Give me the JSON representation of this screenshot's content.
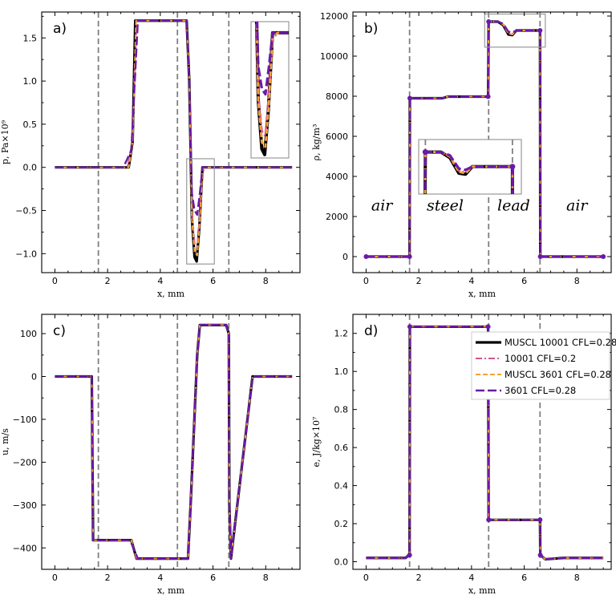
{
  "series_styles": [
    {
      "name": "MUSCL 10001 CFL=0.28",
      "color": "#000000",
      "dash": "",
      "width": 3.2
    },
    {
      "name": "10001   CFL=0.2",
      "color": "#d6558a",
      "dash": "8,3,2,3",
      "width": 2.0
    },
    {
      "name": "MUSCL 3601   CFL=0.28",
      "color": "#f5a13a",
      "dash": "6,3",
      "width": 2.0
    },
    {
      "name": "3601   CFL=0.28",
      "color": "#6a1aa8",
      "dash": "11,4",
      "width": 2.4
    }
  ],
  "interface_color": "#808080",
  "chart_data": [
    {
      "id": "a",
      "type": "line",
      "panel_label": "a)",
      "xlabel": "x, mm",
      "ylabel": "p, Pa×10⁹",
      "xlim": [
        -0.5,
        9.3
      ],
      "ylim": [
        -1.22,
        1.8
      ],
      "xticks": [
        0,
        2,
        4,
        6,
        8
      ],
      "yticks": [
        -1.0,
        -0.5,
        0.0,
        0.5,
        1.0,
        1.5
      ],
      "ytick_labels": [
        "−1.0",
        "−0.5",
        "0.0",
        "0.5",
        "1.0",
        "1.5"
      ],
      "interfaces": [
        1.65,
        4.65,
        6.6
      ],
      "series": [
        {
          "name": "MUSCL 10001 CFL=0.28",
          "x": [
            0,
            2.8,
            2.95,
            3.05,
            5.0,
            5.1,
            5.2,
            5.3,
            5.38,
            5.48,
            5.6,
            5.75,
            9
          ],
          "y": [
            0,
            0,
            0.3,
            1.7,
            1.7,
            1.0,
            -0.6,
            -1.04,
            -1.09,
            -0.7,
            0,
            0,
            0
          ]
        },
        {
          "name": "10001   CFL=0.2",
          "x": [
            0,
            2.75,
            2.95,
            3.1,
            5.0,
            5.1,
            5.2,
            5.3,
            5.4,
            5.5,
            5.6,
            5.75,
            9
          ],
          "y": [
            0,
            0,
            0.3,
            1.7,
            1.7,
            1.0,
            -0.55,
            -0.88,
            -0.92,
            -0.55,
            -0.05,
            0,
            0
          ]
        },
        {
          "name": "MUSCL 3601   CFL=0.28",
          "x": [
            0,
            2.8,
            2.95,
            3.08,
            5.0,
            5.1,
            5.2,
            5.3,
            5.4,
            5.5,
            5.6,
            5.75,
            9
          ],
          "y": [
            0,
            0,
            0.3,
            1.7,
            1.7,
            1.0,
            -0.6,
            -0.98,
            -1.02,
            -0.62,
            -0.02,
            0,
            0
          ]
        },
        {
          "name": "3601   CFL=0.28",
          "x": [
            0,
            2.6,
            2.9,
            3.15,
            5.0,
            5.1,
            5.2,
            5.3,
            5.4,
            5.5,
            5.6,
            5.75,
            9
          ],
          "y": [
            0,
            0,
            0.2,
            1.7,
            1.7,
            1.0,
            -0.3,
            -0.5,
            -0.55,
            -0.3,
            0,
            0,
            0
          ]
        }
      ],
      "zoom_box": [
        5.0,
        6.05,
        -1.12,
        0.1
      ],
      "inset": true
    },
    {
      "id": "b",
      "type": "line",
      "panel_label": "b)",
      "xlabel": "x, mm",
      "ylabel": "ρ, kg/m³",
      "xlim": [
        -0.5,
        9.3
      ],
      "ylim": [
        -800,
        12200
      ],
      "xticks": [
        0,
        2,
        4,
        6,
        8
      ],
      "yticks": [
        0,
        2000,
        4000,
        6000,
        8000,
        10000,
        12000
      ],
      "ytick_labels": [
        "0",
        "2000",
        "4000",
        "6000",
        "8000",
        "10000",
        "12000"
      ],
      "interfaces": [
        1.65,
        4.65,
        6.6
      ],
      "region_labels": [
        {
          "text": "air",
          "x": 0.6,
          "y": 2300
        },
        {
          "text": "steel",
          "x": 3.0,
          "y": 2300
        },
        {
          "text": "lead",
          "x": 5.6,
          "y": 2300
        },
        {
          "text": "air",
          "x": 8.0,
          "y": 2300
        }
      ],
      "series": [
        {
          "name": "MUSCL 10001 CFL=0.28",
          "x": [
            0,
            1.65,
            1.66,
            2.9,
            3.1,
            4.63,
            4.65,
            5.0,
            5.2,
            5.4,
            5.55,
            5.7,
            6.6,
            6.61,
            9
          ],
          "y": [
            0,
            0,
            7900,
            7900,
            7980,
            7980,
            11720,
            11720,
            11550,
            11080,
            11050,
            11280,
            11280,
            0,
            0
          ]
        },
        {
          "name": "10001   CFL=0.2",
          "x": [
            0,
            1.65,
            1.66,
            2.9,
            3.1,
            4.63,
            4.65,
            5.0,
            5.2,
            5.4,
            5.55,
            5.7,
            6.6,
            6.61,
            9
          ],
          "y": [
            0,
            0,
            7900,
            7900,
            7980,
            7980,
            11720,
            11720,
            11600,
            11150,
            11100,
            11280,
            11280,
            0,
            0
          ]
        },
        {
          "name": "MUSCL 3601   CFL=0.28",
          "x": [
            0,
            1.65,
            1.66,
            2.9,
            3.1,
            4.63,
            4.65,
            5.0,
            5.2,
            5.4,
            5.55,
            5.7,
            6.6,
            6.61,
            9
          ],
          "y": [
            0,
            0,
            7900,
            7900,
            7980,
            7980,
            11720,
            11720,
            11580,
            11120,
            11080,
            11280,
            11280,
            0,
            0
          ]
        },
        {
          "name": "3601   CFL=0.28",
          "x": [
            0,
            1.65,
            1.66,
            2.9,
            3.1,
            4.63,
            4.65,
            5.0,
            5.2,
            5.4,
            5.55,
            5.7,
            6.6,
            6.61,
            9
          ],
          "y": [
            0,
            0,
            7900,
            7900,
            7980,
            7980,
            11720,
            11720,
            11620,
            11220,
            11180,
            11280,
            11280,
            0,
            0
          ]
        }
      ],
      "markers": [
        {
          "x": 0,
          "y": 0
        },
        {
          "x": 1.65,
          "y": 0
        },
        {
          "x": 1.66,
          "y": 7900
        },
        {
          "x": 4.63,
          "y": 7980
        },
        {
          "x": 4.65,
          "y": 11720
        },
        {
          "x": 6.6,
          "y": 11280
        },
        {
          "x": 6.61,
          "y": 0
        },
        {
          "x": 9,
          "y": 0
        }
      ],
      "zoom_box": [
        4.5,
        6.8,
        10450,
        12100
      ],
      "inset": true
    },
    {
      "id": "c",
      "type": "line",
      "panel_label": "c)",
      "xlabel": "x, mm",
      "ylabel": "u, m/s",
      "xlim": [
        -0.5,
        9.3
      ],
      "ylim": [
        -450,
        145
      ],
      "xticks": [
        0,
        2,
        4,
        6,
        8
      ],
      "yticks": [
        -400,
        -300,
        -200,
        -100,
        0,
        100
      ],
      "ytick_labels": [
        "−400",
        "−300",
        "−200",
        "−100",
        "0",
        "100"
      ],
      "interfaces": [
        1.65,
        4.65,
        6.6
      ],
      "series": [
        {
          "name": "MUSCL 10001 CFL=0.28",
          "x": [
            0,
            1.4,
            1.45,
            2.9,
            3.1,
            5.05,
            5.15,
            5.4,
            5.5,
            6.5,
            6.6,
            6.62,
            6.68,
            7.5,
            9
          ],
          "y": [
            0,
            0,
            -382,
            -382,
            -425,
            -425,
            -300,
            50,
            120,
            120,
            100,
            -300,
            -425,
            0,
            0
          ]
        },
        {
          "name": "10001   CFL=0.2",
          "x": [
            0,
            1.4,
            1.45,
            2.9,
            3.1,
            5.05,
            5.15,
            5.4,
            5.5,
            6.5,
            6.6,
            6.62,
            6.68,
            7.5,
            9
          ],
          "y": [
            0,
            0,
            -382,
            -382,
            -425,
            -425,
            -300,
            50,
            120,
            120,
            100,
            -300,
            -425,
            0,
            0
          ]
        },
        {
          "name": "MUSCL 3601   CFL=0.28",
          "x": [
            0,
            1.4,
            1.45,
            2.9,
            3.1,
            5.05,
            5.15,
            5.4,
            5.5,
            6.5,
            6.6,
            6.62,
            6.68,
            7.5,
            9
          ],
          "y": [
            0,
            0,
            -382,
            -382,
            -425,
            -425,
            -300,
            50,
            120,
            120,
            100,
            -300,
            -425,
            0,
            0
          ]
        },
        {
          "name": "3601   CFL=0.28",
          "x": [
            0,
            1.4,
            1.45,
            2.85,
            3.15,
            5.05,
            5.15,
            5.4,
            5.5,
            6.5,
            6.6,
            6.62,
            6.68,
            7.5,
            9
          ],
          "y": [
            0,
            0,
            -382,
            -382,
            -425,
            -425,
            -300,
            50,
            120,
            120,
            100,
            -300,
            -425,
            0,
            0
          ]
        }
      ]
    },
    {
      "id": "d",
      "type": "line",
      "panel_label": "d)",
      "xlabel": "x, mm",
      "ylabel": "e, J/kg×10⁷",
      "xlim": [
        -0.5,
        9.3
      ],
      "ylim": [
        -0.04,
        1.3
      ],
      "xticks": [
        0,
        2,
        4,
        6,
        8
      ],
      "yticks": [
        0.0,
        0.2,
        0.4,
        0.6,
        0.8,
        1.0,
        1.2
      ],
      "ytick_labels": [
        "0.0",
        "0.2",
        "0.4",
        "0.6",
        "0.8",
        "1.0",
        "1.2"
      ],
      "interfaces": [
        1.65,
        4.65,
        6.6
      ],
      "series": [
        {
          "name": "MUSCL 10001 CFL=0.28",
          "x": [
            0,
            1.5,
            1.62,
            1.65,
            1.66,
            4.63,
            4.65,
            6.6,
            6.61,
            6.8,
            7.5,
            9
          ],
          "y": [
            0.02,
            0.02,
            0.035,
            0.035,
            1.235,
            1.235,
            0.22,
            0.22,
            0.035,
            0.013,
            0.02,
            0.02
          ]
        },
        {
          "name": "10001   CFL=0.2",
          "x": [
            0,
            1.5,
            1.62,
            1.65,
            1.66,
            4.63,
            4.65,
            6.6,
            6.61,
            6.8,
            7.5,
            9
          ],
          "y": [
            0.02,
            0.02,
            0.035,
            0.035,
            1.235,
            1.235,
            0.22,
            0.22,
            0.035,
            0.013,
            0.02,
            0.02
          ]
        },
        {
          "name": "MUSCL 3601   CFL=0.28",
          "x": [
            0,
            1.5,
            1.62,
            1.65,
            1.66,
            4.63,
            4.65,
            6.6,
            6.61,
            6.8,
            7.5,
            9
          ],
          "y": [
            0.02,
            0.02,
            0.035,
            0.035,
            1.235,
            1.235,
            0.22,
            0.22,
            0.035,
            0.013,
            0.02,
            0.02
          ]
        },
        {
          "name": "3601   CFL=0.28",
          "x": [
            0,
            1.5,
            1.62,
            1.65,
            1.66,
            4.63,
            4.65,
            6.6,
            6.61,
            6.8,
            7.5,
            9
          ],
          "y": [
            0.02,
            0.02,
            0.035,
            0.035,
            1.235,
            1.235,
            0.22,
            0.22,
            0.035,
            0.013,
            0.02,
            0.02
          ]
        }
      ],
      "markers": [
        {
          "x": 1.65,
          "y": 0.035
        },
        {
          "x": 1.66,
          "y": 1.235
        },
        {
          "x": 4.63,
          "y": 1.235
        },
        {
          "x": 4.65,
          "y": 0.22
        },
        {
          "x": 6.6,
          "y": 0.22
        },
        {
          "x": 6.61,
          "y": 0.035
        }
      ],
      "legend": {
        "location": "top-right",
        "entries": [
          "MUSCL 10001 CFL=0.28",
          "10001   CFL=0.2",
          "MUSCL 3601   CFL=0.28",
          "3601   CFL=0.28"
        ]
      }
    }
  ]
}
